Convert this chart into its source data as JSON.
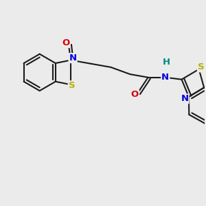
{
  "bg_color": "#ebebeb",
  "bond_color": "#1a1a1a",
  "S_color": "#b8b000",
  "N_color": "#0000dd",
  "O_color": "#dd0000",
  "H_color": "#008888",
  "lw": 1.5,
  "inner_lw": 1.5,
  "font_size": 9.5,
  "xlim": [
    0,
    10
  ],
  "ylim": [
    0,
    10
  ]
}
